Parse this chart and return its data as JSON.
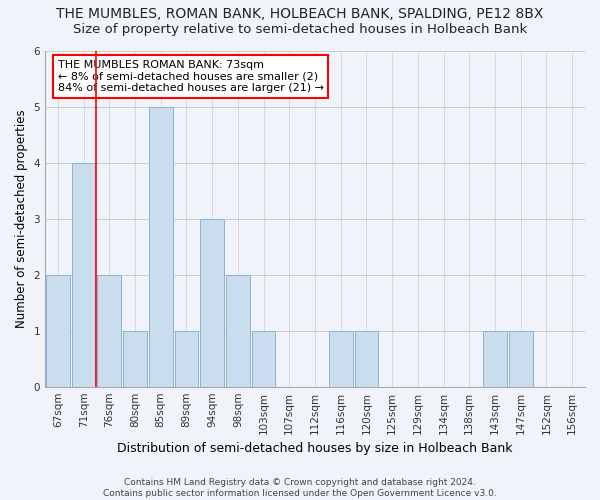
{
  "title": "THE MUMBLES, ROMAN BANK, HOLBEACH BANK, SPALDING, PE12 8BX",
  "subtitle": "Size of property relative to semi-detached houses in Holbeach Bank",
  "xlabel": "Distribution of semi-detached houses by size in Holbeach Bank",
  "ylabel": "Number of semi-detached properties",
  "categories": [
    "67sqm",
    "71sqm",
    "76sqm",
    "80sqm",
    "85sqm",
    "89sqm",
    "94sqm",
    "98sqm",
    "103sqm",
    "107sqm",
    "112sqm",
    "116sqm",
    "120sqm",
    "125sqm",
    "129sqm",
    "134sqm",
    "138sqm",
    "143sqm",
    "147sqm",
    "152sqm",
    "156sqm"
  ],
  "values": [
    2,
    4,
    2,
    1,
    5,
    1,
    3,
    2,
    1,
    0,
    0,
    1,
    1,
    0,
    0,
    0,
    0,
    1,
    1,
    0,
    0
  ],
  "bar_color": "#c9ddef",
  "bar_edgecolor": "#8ab4d4",
  "red_line_index": 1.5,
  "annotation_text": "THE MUMBLES ROMAN BANK: 73sqm\n← 8% of semi-detached houses are smaller (2)\n84% of semi-detached houses are larger (21) →",
  "annotation_box_color": "white",
  "annotation_box_edgecolor": "red",
  "grid_color": "#cccccc",
  "background_color": "#f0f4fa",
  "ylim": [
    0,
    6
  ],
  "yticks": [
    0,
    1,
    2,
    3,
    4,
    5,
    6
  ],
  "footer": "Contains HM Land Registry data © Crown copyright and database right 2024.\nContains public sector information licensed under the Open Government Licence v3.0.",
  "title_fontsize": 10,
  "subtitle_fontsize": 9.5,
  "tick_fontsize": 7.5,
  "ylabel_fontsize": 8.5,
  "xlabel_fontsize": 9,
  "annotation_fontsize": 8,
  "footer_fontsize": 6.5
}
